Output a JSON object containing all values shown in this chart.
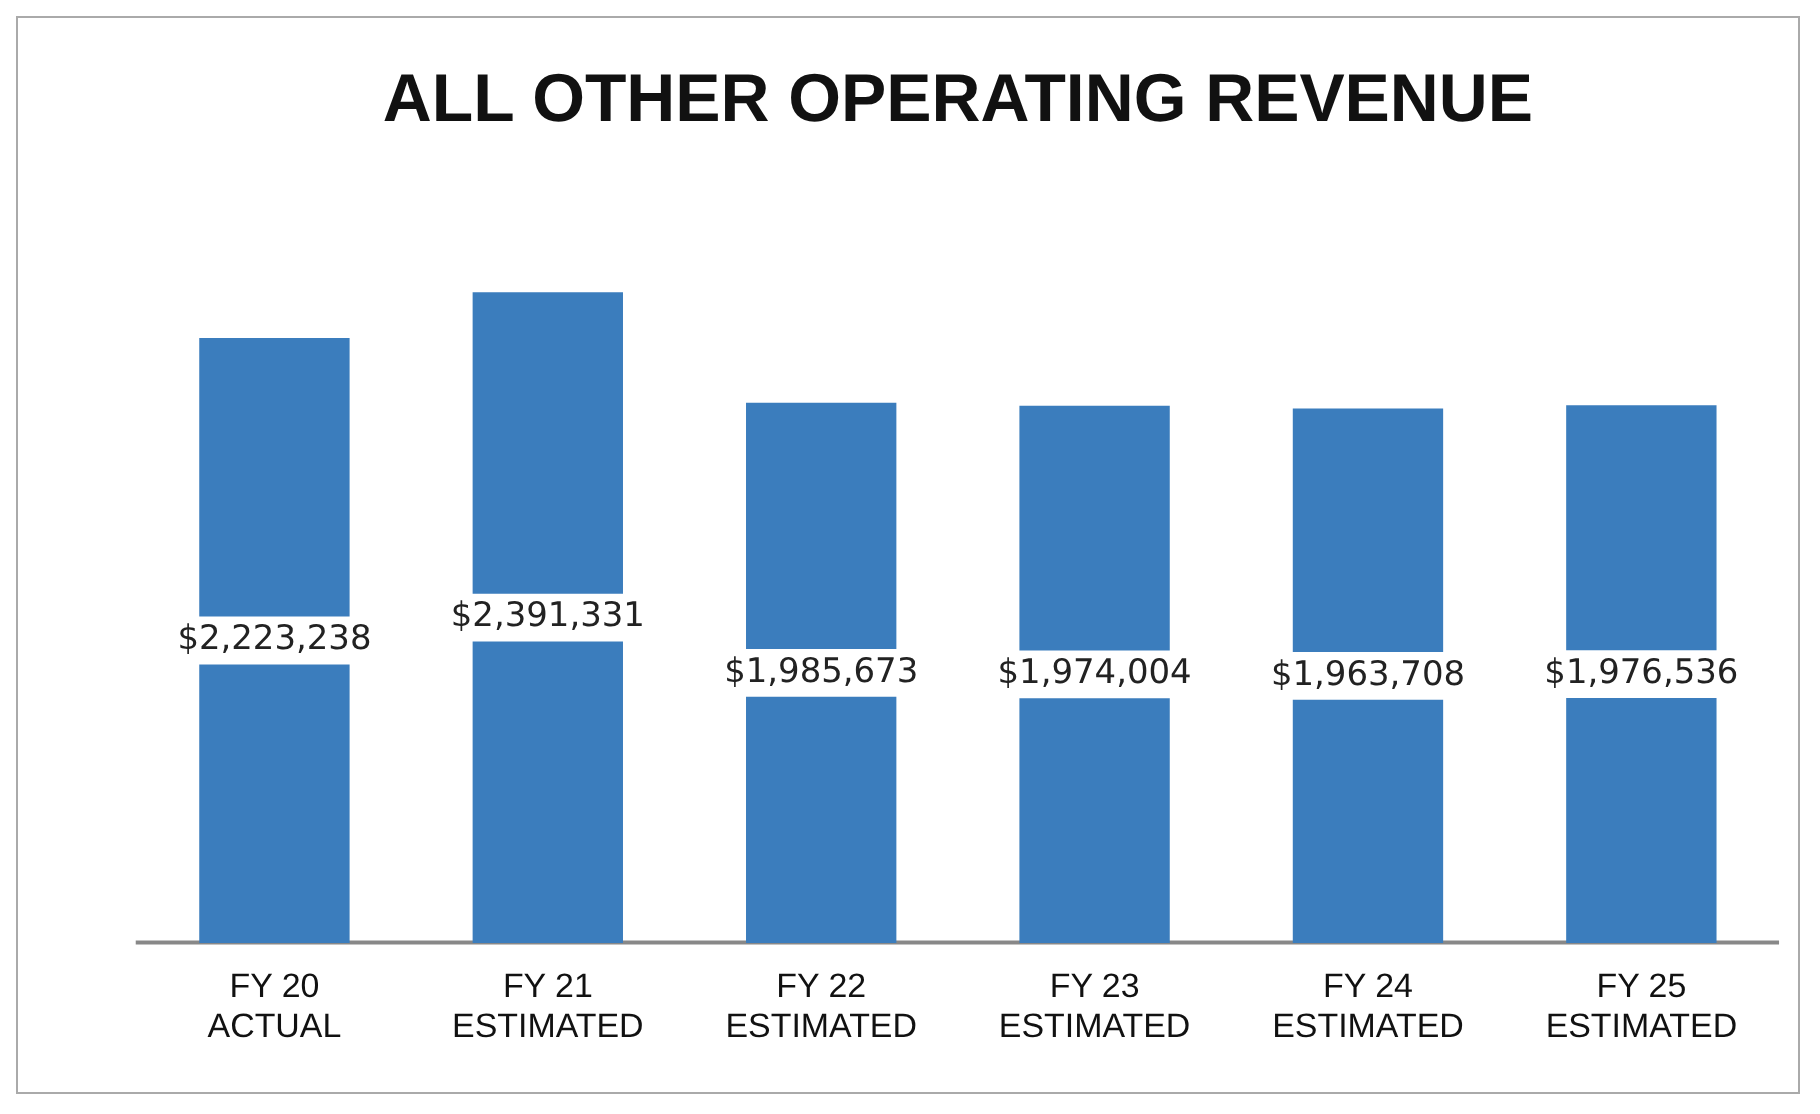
{
  "chart_data": {
    "type": "bar",
    "title": "ALL OTHER OPERATING REVENUE",
    "categories": [
      "FY 20\nACTUAL",
      "FY 21\nESTIMATED",
      "FY 22\nESTIMATED",
      "FY 23\nESTIMATED",
      "FY 24\nESTIMATED",
      "FY 25\nESTIMATED"
    ],
    "values": [
      2223238,
      2391331,
      1985673,
      1974004,
      1963708,
      1976536
    ],
    "value_labels": [
      "$2,223,238",
      "$2,391,331",
      "$1,985,673",
      "$1,974,004",
      "$1,963,708",
      "$1,976,536"
    ],
    "color": "#3b7dbd",
    "tick_labels": "x",
    "grid": false,
    "legend": false
  }
}
